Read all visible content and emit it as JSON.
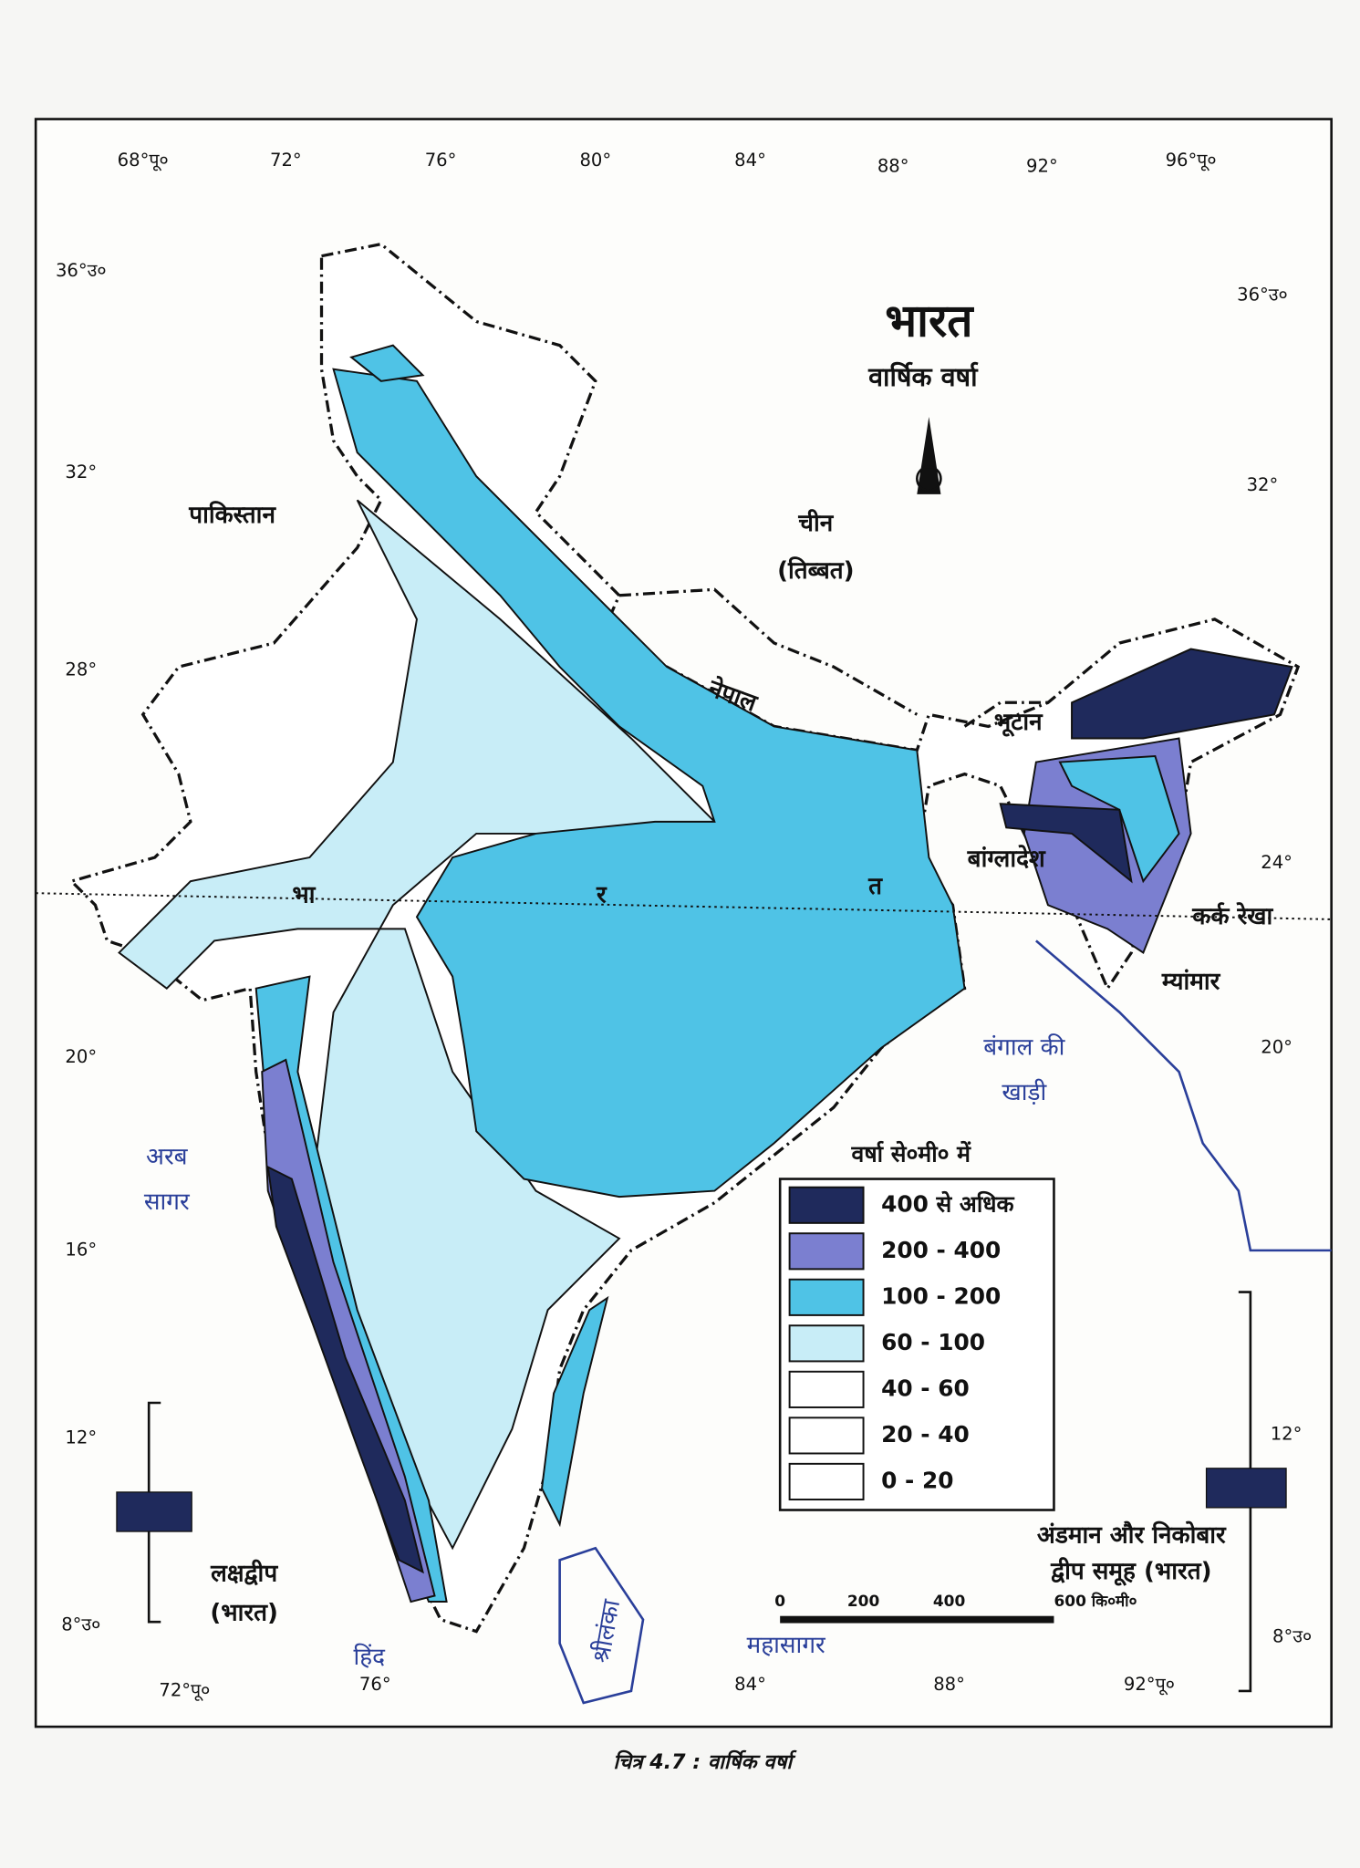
{
  "map": {
    "title": "भारत",
    "subtitle": "वार्षिक वर्षा",
    "top_ticks": [
      "68°पू०",
      "72°",
      "76°",
      "80°",
      "84°",
      "88°",
      "92°",
      "96°पू०"
    ],
    "left_ticks": [
      "36°उ०",
      "32°",
      "28°",
      "20°",
      "16°",
      "12°",
      "8°उ०"
    ],
    "right_ticks": [
      "36°उ०",
      "32°",
      "24°",
      "20°",
      "12°",
      "8°उ०"
    ],
    "bottom_ticks": [
      "72°पू०",
      "76°",
      "84°",
      "88°",
      "92°पू०"
    ],
    "country_labels": [
      "पाकिस्तान",
      "चीन",
      "(तिब्बत)",
      "नेपाल",
      "भूटान",
      "बांग्लादेश",
      "म्यांमार"
    ],
    "india_letters": [
      "भा",
      "र",
      "त"
    ],
    "tropic": "कर्क रेखा",
    "water_labels": [
      "बंगाल की",
      "खाड़ी",
      "अरब",
      "सागर",
      "हिंद",
      "महासागर",
      "श्रीलंका"
    ],
    "islands": [
      "लक्षद्वीप",
      "(भारत)",
      "अंडमान और निकोबार",
      "द्वीप समूह (भारत)"
    ],
    "legend": {
      "title": "वर्षा से०मी० में",
      "items": [
        {
          "label": "400 से अधिक",
          "color": "#1f2a5c"
        },
        {
          "label": "200 - 400",
          "color": "#7b7fd0"
        },
        {
          "label": "100 - 200",
          "color": "#4fc3e6"
        },
        {
          "label": "60 - 100",
          "color": "#c8edf7"
        },
        {
          "label": "40 - 60",
          "color": "#ffffff"
        },
        {
          "label": "20 - 40",
          "color": "#ffffff"
        },
        {
          "label": "0 - 20",
          "color": "#ffffff"
        }
      ]
    },
    "scale_ticks": [
      "0",
      "200",
      "400",
      "600 कि०मी०"
    ],
    "caption": "चित्र 4.7 : वार्षिक वर्षा"
  }
}
